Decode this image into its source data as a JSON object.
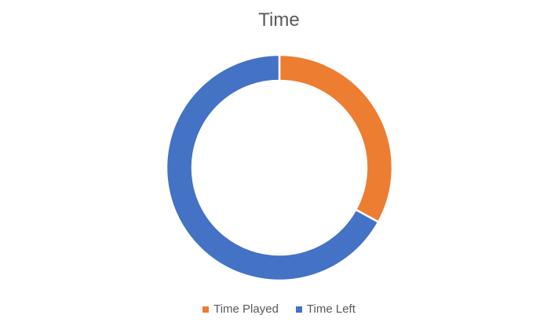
{
  "chart_data": {
    "type": "pie",
    "title": "Time",
    "categories": [
      "Time Played",
      "Time Left"
    ],
    "values": [
      33,
      67
    ],
    "colors": [
      "#ED7D31",
      "#4472C4"
    ],
    "donut": true,
    "legend": "bottom"
  }
}
